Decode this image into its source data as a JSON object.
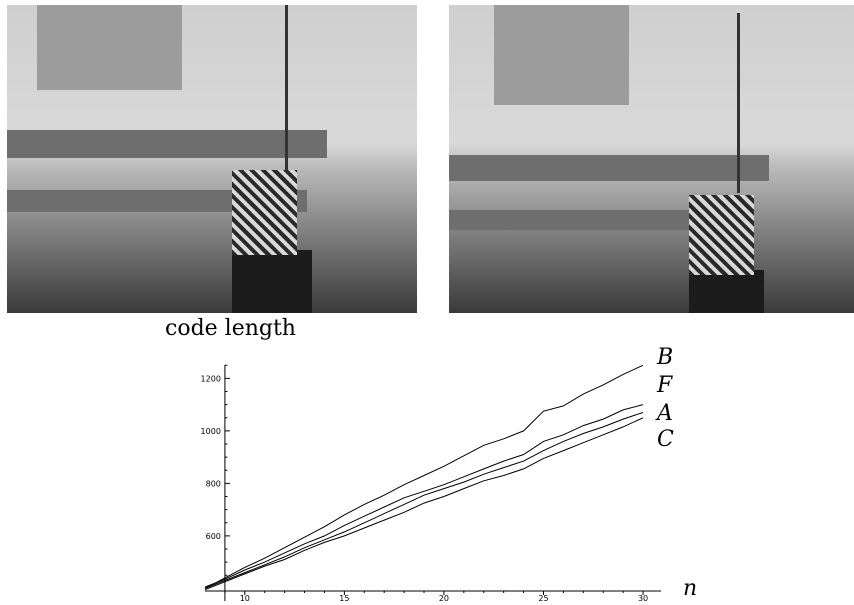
{
  "photos": [
    {
      "description": "robot arm with textured block, left view"
    },
    {
      "description": "robot arm with textured block, right view"
    }
  ],
  "chart_data": {
    "type": "line",
    "title": "code length",
    "xlabel": "n",
    "ylabel": "",
    "xlim": [
      8,
      30.5
    ],
    "ylim": [
      390,
      1270
    ],
    "xticks": [
      10,
      15,
      20,
      25,
      30
    ],
    "yticks": [
      600,
      800,
      1000,
      1200
    ],
    "x": [
      8,
      9,
      10,
      11,
      12,
      13,
      14,
      15,
      16,
      17,
      18,
      19,
      20,
      21,
      22,
      23,
      24,
      25,
      26,
      27,
      28,
      29,
      30
    ],
    "series": [
      {
        "name": "B",
        "values": [
          400,
          440,
          480,
          515,
          555,
          595,
          635,
          680,
          720,
          755,
          795,
          830,
          865,
          905,
          945,
          970,
          1000,
          1075,
          1095,
          1140,
          1175,
          1215,
          1250
        ]
      },
      {
        "name": "F",
        "values": [
          405,
          435,
          470,
          500,
          535,
          570,
          600,
          640,
          675,
          710,
          745,
          770,
          795,
          825,
          855,
          885,
          910,
          960,
          985,
          1020,
          1045,
          1080,
          1100
        ]
      },
      {
        "name": "A",
        "values": [
          400,
          430,
          460,
          490,
          520,
          555,
          585,
          615,
          650,
          685,
          720,
          755,
          780,
          805,
          835,
          860,
          885,
          925,
          960,
          990,
          1015,
          1045,
          1070
        ]
      },
      {
        "name": "C",
        "values": [
          395,
          425,
          455,
          485,
          510,
          545,
          575,
          600,
          630,
          660,
          690,
          725,
          750,
          780,
          810,
          830,
          855,
          895,
          925,
          955,
          985,
          1015,
          1050
        ]
      }
    ]
  }
}
